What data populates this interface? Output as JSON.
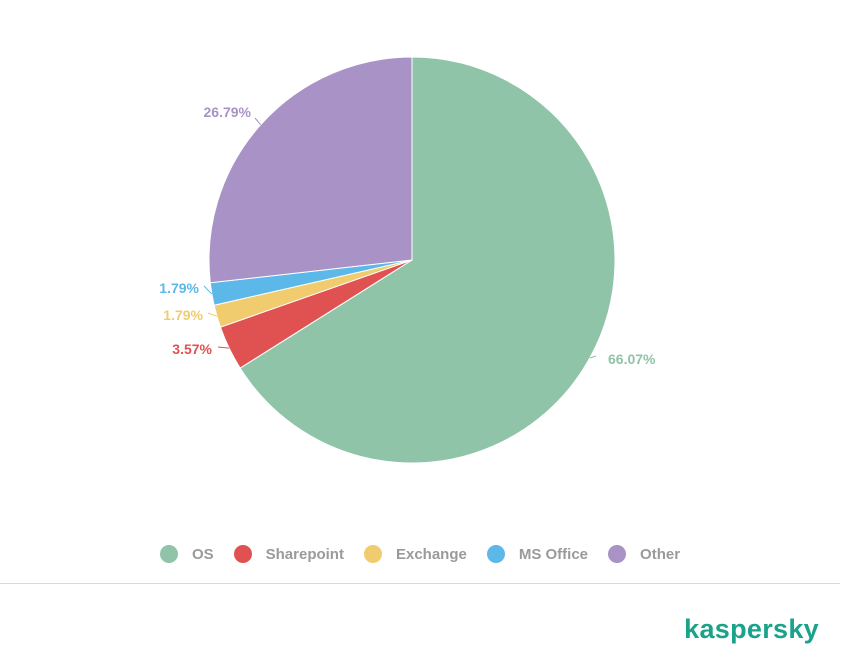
{
  "chart_data": {
    "type": "pie",
    "categories": [
      "OS",
      "Sharepoint",
      "Exchange",
      "MS Office",
      "Other"
    ],
    "values": [
      66.07,
      3.57,
      1.79,
      1.79,
      26.79
    ],
    "labels": [
      "66.07%",
      "3.57%",
      "1.79%",
      "1.79%",
      "26.79%"
    ],
    "colors": [
      "#8fc4a8",
      "#e05252",
      "#f0cc6e",
      "#5cb8e8",
      "#a992c6"
    ],
    "start_angle_deg": 0,
    "direction": "clockwise",
    "legend_position": "bottom"
  },
  "brand": {
    "name": "kaspersky",
    "color": "#1aa38a"
  }
}
